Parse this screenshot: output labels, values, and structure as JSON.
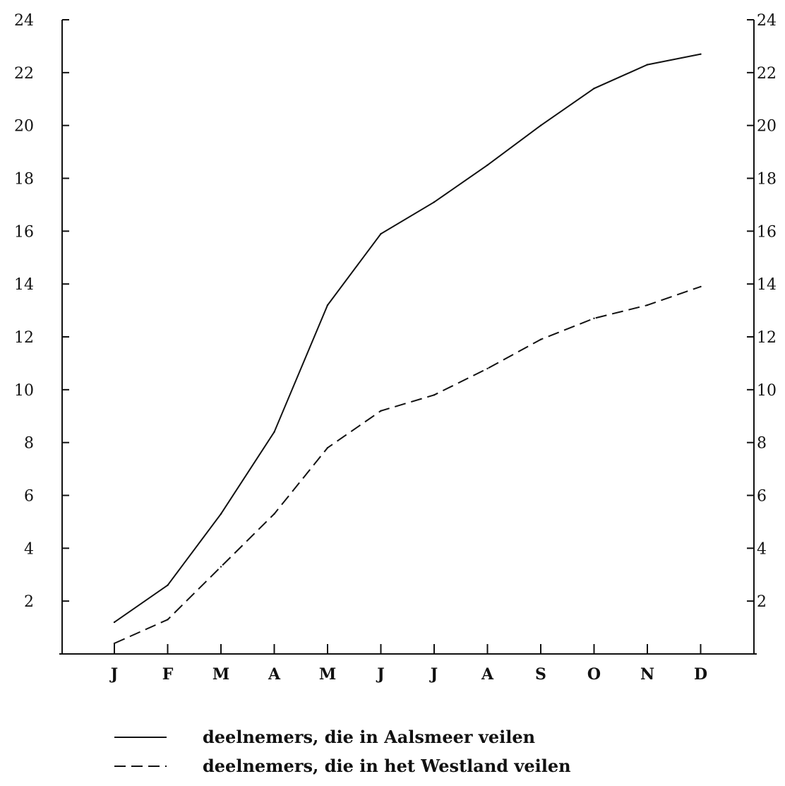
{
  "chart_data": {
    "type": "line",
    "categories": [
      "J",
      "F",
      "M",
      "A",
      "M",
      "J",
      "J",
      "A",
      "S",
      "O",
      "N",
      "D"
    ],
    "ylim": [
      0,
      24
    ],
    "yticks_left": [
      2,
      4,
      6,
      8,
      10,
      12,
      14,
      16,
      18,
      20,
      22,
      24
    ],
    "yticks_right": [
      2,
      4,
      6,
      8,
      10,
      12,
      14,
      16,
      18,
      20,
      22,
      24
    ],
    "grid": false,
    "legend_position": "bottom",
    "series": [
      {
        "name": "deelnemers, die in Aalsmeer veilen",
        "style": "solid",
        "color": "#111111",
        "values": [
          1.2,
          2.6,
          5.3,
          8.4,
          13.2,
          15.9,
          17.1,
          18.5,
          20.0,
          21.4,
          22.3,
          22.7
        ]
      },
      {
        "name": "deelnemers, die in het Westland veilen",
        "style": "dashed",
        "color": "#111111",
        "values": [
          0.4,
          1.3,
          3.3,
          5.3,
          7.8,
          9.2,
          9.8,
          10.8,
          11.9,
          12.7,
          13.2,
          13.9
        ]
      }
    ]
  }
}
